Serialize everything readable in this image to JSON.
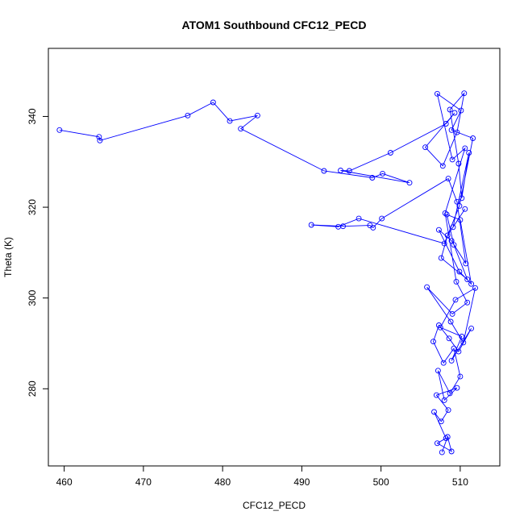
{
  "chart_data": {
    "type": "line",
    "title": "ATOM1 Southbound CFC12_PECD",
    "xlabel": "CFC12_PECD",
    "ylabel": "Theta (K)",
    "xlim": [
      458,
      515
    ],
    "ylim": [
      263,
      355
    ],
    "xticks": [
      460,
      470,
      480,
      490,
      500,
      510
    ],
    "yticks": [
      280,
      300,
      320,
      340
    ],
    "grid": false,
    "legend": "none",
    "color": "#0000ff",
    "marker": "open-circle",
    "x": [
      459.4,
      464.4,
      464.5,
      475.6,
      478.8,
      480.9,
      484.4,
      482.3,
      492.8,
      498.9,
      500.2,
      503.6,
      494.9,
      496.0,
      501.2,
      508.2,
      509.3,
      505.6,
      507.8,
      509.6,
      510.5,
      508.7,
      509.8,
      510.2,
      511.1,
      509.1,
      510.6,
      508.4,
      507.6,
      510.9,
      509.2,
      508.3,
      510.0,
      511.4,
      509.9,
      507.3,
      508.9,
      510.7,
      509.6,
      508.5,
      500.1,
      499.0,
      498.6,
      495.2,
      491.2,
      494.6,
      497.2,
      508.0,
      509.9,
      511.6,
      508.9,
      510.1,
      507.1,
      509.0,
      510.6,
      508.1,
      509.5,
      510.9,
      509.0,
      505.8,
      508.8,
      510.4,
      511.9,
      509.4,
      507.5,
      510.2,
      508.9,
      511.4,
      509.8,
      508.6,
      507.3,
      506.6,
      507.9,
      509.2,
      510.0,
      508.7,
      507.2,
      508.0,
      509.6,
      507.0,
      508.5,
      507.6,
      506.7,
      508.2,
      507.1,
      508.9,
      508.4,
      507.7
    ],
    "y": [
      337.0,
      335.5,
      334.7,
      340.2,
      343.1,
      339.0,
      340.2,
      337.3,
      328.0,
      326.5,
      327.4,
      325.4,
      328.1,
      328.0,
      332.0,
      338.4,
      340.8,
      333.2,
      329.1,
      336.5,
      345.1,
      341.5,
      329.6,
      322.0,
      332.0,
      315.6,
      319.6,
      313.8,
      308.8,
      304.1,
      311.7,
      318.4,
      317.2,
      303.1,
      305.8,
      315.0,
      312.6,
      307.6,
      321.2,
      326.3,
      317.5,
      315.5,
      316.0,
      315.8,
      316.1,
      315.7,
      317.5,
      312.0,
      320.3,
      335.2,
      337.0,
      341.3,
      345.0,
      330.5,
      333.0,
      318.7,
      303.6,
      299.0,
      296.5,
      302.4,
      294.8,
      290.2,
      302.2,
      299.6,
      293.5,
      291.5,
      286.2,
      293.3,
      288.2,
      291.1,
      294.0,
      290.4,
      285.7,
      288.9,
      282.7,
      279.0,
      284.0,
      277.5,
      280.2,
      278.6,
      275.3,
      272.8,
      274.9,
      269.1,
      268.0,
      266.2,
      269.4,
      266.0
    ]
  }
}
